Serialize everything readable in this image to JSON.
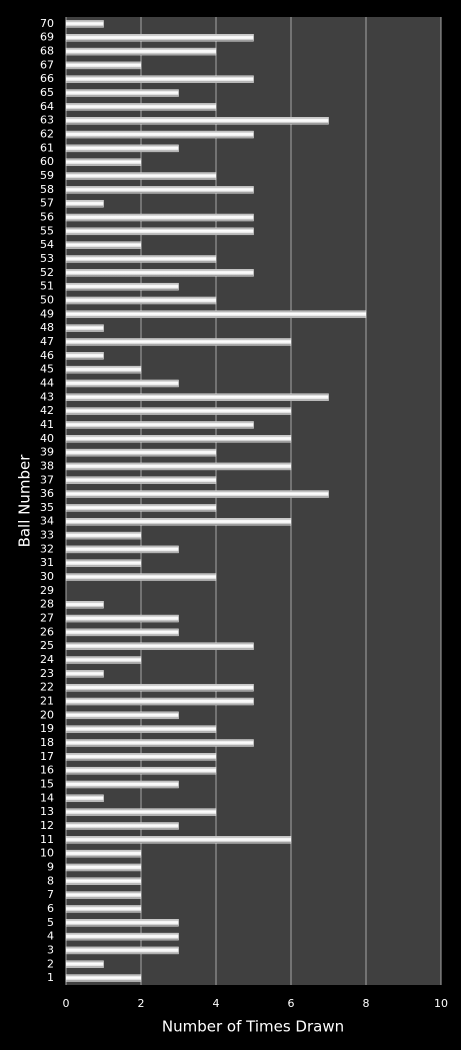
{
  "chart_data": {
    "type": "bar",
    "orientation": "horizontal",
    "x_label": "Number of Times Drawn",
    "y_label": "Ball Number",
    "categories": [
      "1",
      "2",
      "3",
      "4",
      "5",
      "6",
      "7",
      "8",
      "9",
      "10",
      "11",
      "12",
      "13",
      "14",
      "15",
      "16",
      "17",
      "18",
      "19",
      "20",
      "21",
      "22",
      "23",
      "24",
      "25",
      "26",
      "27",
      "28",
      "29",
      "30",
      "31",
      "32",
      "33",
      "34",
      "35",
      "36",
      "37",
      "38",
      "39",
      "40",
      "41",
      "42",
      "43",
      "44",
      "45",
      "46",
      "47",
      "48",
      "49",
      "50",
      "51",
      "52",
      "53",
      "54",
      "55",
      "56",
      "57",
      "58",
      "59",
      "60",
      "61",
      "62",
      "63",
      "64",
      "65",
      "66",
      "67",
      "68",
      "69",
      "70"
    ],
    "values": [
      2,
      1,
      3,
      3,
      3,
      2,
      2,
      2,
      2,
      2,
      6,
      3,
      4,
      1,
      3,
      4,
      4,
      5,
      4,
      3,
      5,
      5,
      1,
      2,
      5,
      3,
      3,
      1,
      0,
      4,
      2,
      3,
      2,
      6,
      4,
      7,
      4,
      6,
      4,
      6,
      5,
      6,
      7,
      3,
      2,
      1,
      6,
      1,
      8,
      4,
      3,
      5,
      4,
      2,
      5,
      5,
      1,
      5,
      4,
      2,
      3,
      5,
      7,
      4,
      3,
      5,
      2,
      4,
      5,
      1
    ],
    "color": "#ffffff",
    "xlim": [
      0,
      10
    ],
    "xticks": [
      0,
      2,
      4,
      6,
      8,
      10
    ],
    "grid": true
  }
}
